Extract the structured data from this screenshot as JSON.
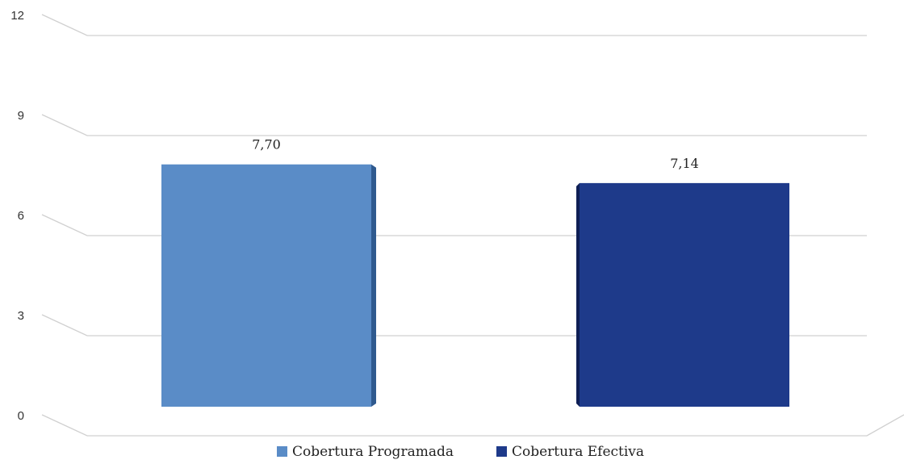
{
  "chart_data": {
    "type": "bar",
    "categories": [
      "Cobertura Programada",
      "Cobertura Efectiva"
    ],
    "values": [
      7.7,
      7.14
    ],
    "value_labels": [
      "7,70",
      "7,14"
    ],
    "ylim": [
      0,
      12
    ],
    "yticks": [
      0,
      3,
      6,
      9,
      12
    ],
    "ytick_labels": [
      "0",
      "3",
      "6",
      "9",
      "12"
    ],
    "grid": true,
    "legend_position": "bottom",
    "legend": [
      "Cobertura Programada",
      "Cobertura Efectiva"
    ],
    "colors": [
      "#5a8cc7",
      "#1e3a8a"
    ],
    "side_colors": [
      "#2f5a8f",
      "#0f1f55"
    ],
    "title": "",
    "xlabel": "",
    "ylabel": ""
  }
}
